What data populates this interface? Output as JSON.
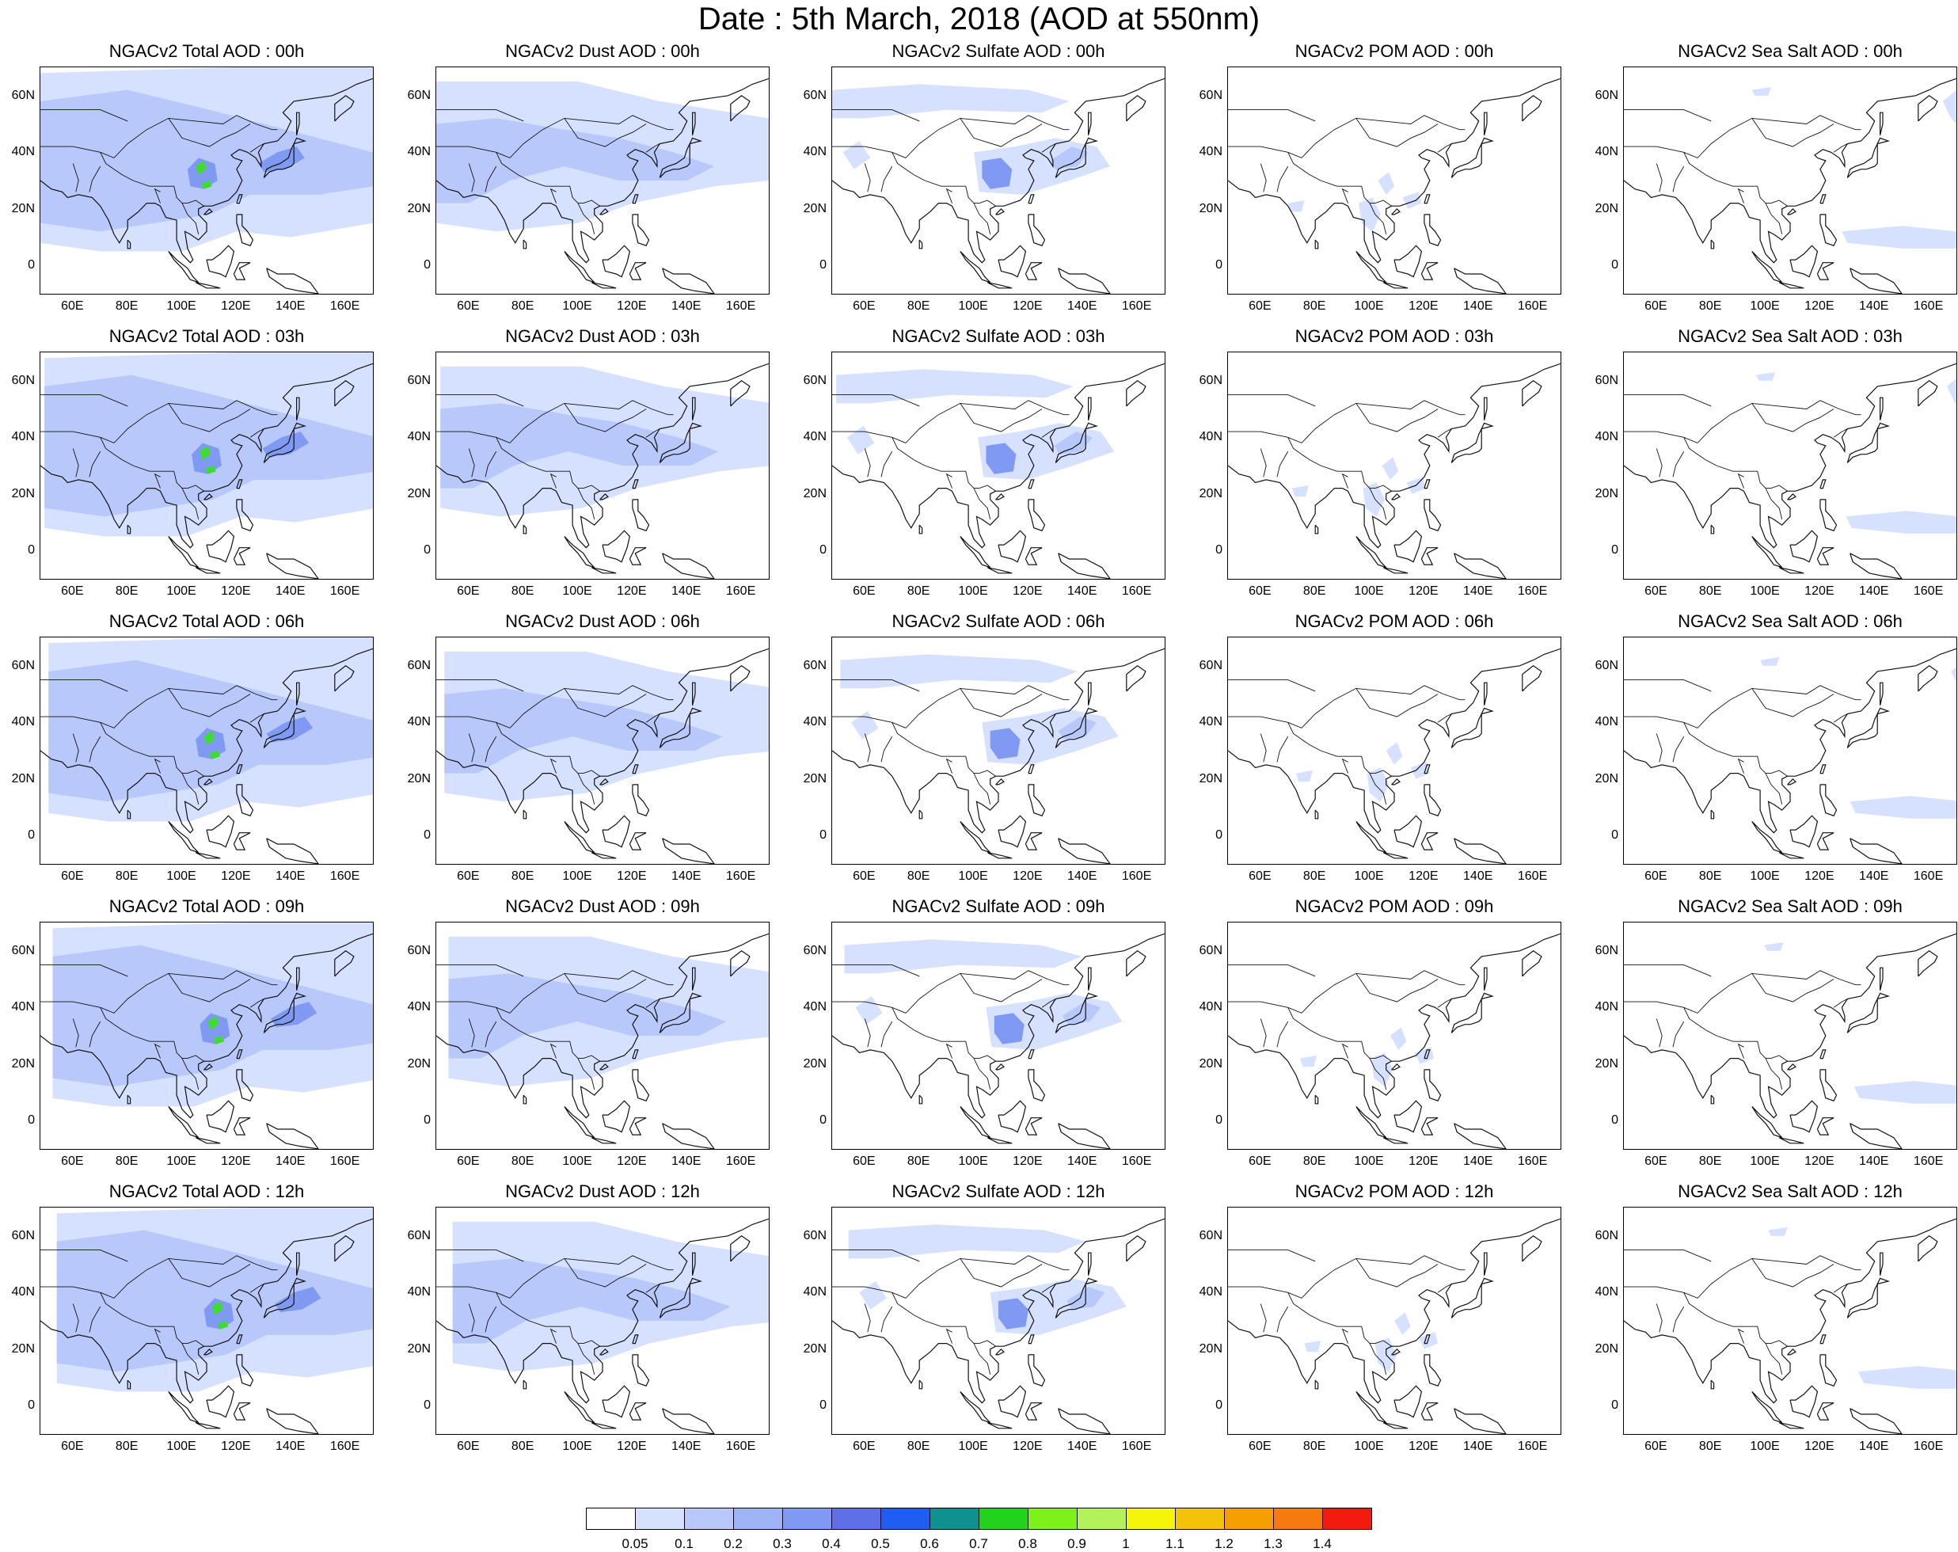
{
  "title": "Date : 5th March, 2018 (AOD at 550nm)",
  "axes": {
    "lat_ticks": [
      "60N",
      "40N",
      "20N",
      "0"
    ],
    "lon_ticks": [
      "60E",
      "80E",
      "100E",
      "120E",
      "140E",
      "160E"
    ]
  },
  "panel_titles": [
    [
      "NGACv2 Total AOD : 00h",
      "NGACv2 Dust AOD : 00h",
      "NGACv2 Sulfate AOD : 00h",
      "NGACv2 POM AOD : 00h",
      "NGACv2 Sea Salt AOD : 00h"
    ],
    [
      "NGACv2 Total AOD : 03h",
      "NGACv2 Dust AOD : 03h",
      "NGACv2 Sulfate AOD : 03h",
      "NGACv2 POM AOD : 03h",
      "NGACv2 Sea Salt AOD : 03h"
    ],
    [
      "NGACv2 Total AOD : 06h",
      "NGACv2 Dust AOD : 06h",
      "NGACv2 Sulfate AOD : 06h",
      "NGACv2 POM AOD : 06h",
      "NGACv2 Sea Salt AOD : 06h"
    ],
    [
      "NGACv2 Total AOD : 09h",
      "NGACv2 Dust AOD : 09h",
      "NGACv2 Sulfate AOD : 09h",
      "NGACv2 POM AOD : 09h",
      "NGACv2 Sea Salt  AOD : 09h"
    ],
    [
      "NGACv2 Total AOD  : 12h",
      "NGACv2 Dust AOD : 12h",
      "NGACv2 Sulfate AOD : 12h",
      "NGACv2 POM  AOD : 12h",
      "NGACv2 Sea Salt  AOD : 12h"
    ]
  ],
  "colorbar": {
    "labels": [
      "0.05",
      "0.1",
      "0.2",
      "0.3",
      "0.4",
      "0.5",
      "0.6",
      "0.7",
      "0.8",
      "0.9",
      "1",
      "1.1",
      "1.2",
      "1.3",
      "1.4"
    ],
    "colors": [
      "#ffffff",
      "#d6e0ff",
      "#b8c8fb",
      "#9fb3f7",
      "#8099f2",
      "#5f6fe6",
      "#1f5ef0",
      "#10908f",
      "#23d11f",
      "#7df21a",
      "#b3f25a",
      "#f5f50a",
      "#f5c20a",
      "#f5a000",
      "#f57a10",
      "#f51a10"
    ]
  },
  "palette": {
    "light": "#d6e0ff",
    "mid": "#b8c8fb",
    "dark": "#8099f2",
    "green": "#3fdc30"
  }
}
